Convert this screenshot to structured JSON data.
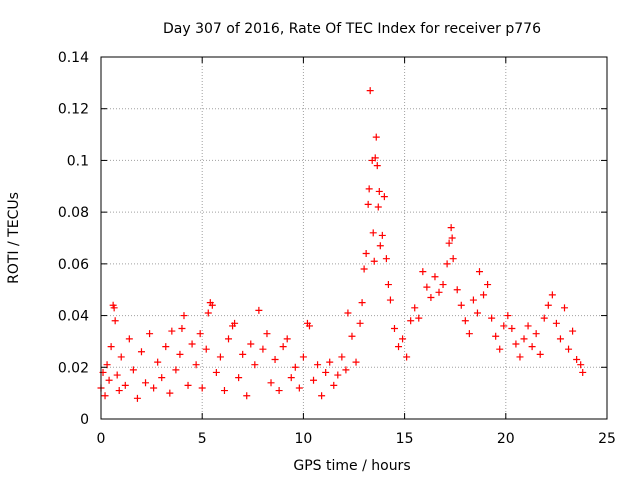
{
  "chart_data": {
    "type": "scatter",
    "title": "Day 307 of 2016, Rate Of TEC Index for receiver p776",
    "xlabel": "GPS time / hours",
    "ylabel": "ROTI / TECUs",
    "xlim": [
      0,
      25
    ],
    "ylim": [
      0,
      0.14
    ],
    "xticks": [
      0,
      5,
      10,
      15,
      20,
      25
    ],
    "yticks": [
      0,
      0.02,
      0.04,
      0.06,
      0.08,
      0.1,
      0.12,
      0.14
    ],
    "xtick_labels": [
      "0",
      "5",
      "10",
      "15",
      "20",
      "25"
    ],
    "ytick_labels": [
      "0",
      "0.02",
      "0.04",
      "0.06",
      "0.08",
      "0.1",
      "0.12",
      "0.14"
    ],
    "grid": true,
    "marker": "+",
    "color": "#ff0000",
    "series": [
      {
        "name": "ROTI",
        "points": [
          [
            0.0,
            0.012
          ],
          [
            0.1,
            0.018
          ],
          [
            0.2,
            0.009
          ],
          [
            0.3,
            0.021
          ],
          [
            0.4,
            0.015
          ],
          [
            0.5,
            0.028
          ],
          [
            0.6,
            0.044
          ],
          [
            0.65,
            0.043
          ],
          [
            0.7,
            0.038
          ],
          [
            0.8,
            0.017
          ],
          [
            0.9,
            0.011
          ],
          [
            1.0,
            0.024
          ],
          [
            1.2,
            0.013
          ],
          [
            1.4,
            0.031
          ],
          [
            1.6,
            0.019
          ],
          [
            1.8,
            0.008
          ],
          [
            2.0,
            0.026
          ],
          [
            2.2,
            0.014
          ],
          [
            2.4,
            0.033
          ],
          [
            2.6,
            0.012
          ],
          [
            2.8,
            0.022
          ],
          [
            3.0,
            0.016
          ],
          [
            3.2,
            0.028
          ],
          [
            3.4,
            0.01
          ],
          [
            3.5,
            0.034
          ],
          [
            3.7,
            0.019
          ],
          [
            3.9,
            0.025
          ],
          [
            4.0,
            0.035
          ],
          [
            4.1,
            0.04
          ],
          [
            4.3,
            0.013
          ],
          [
            4.5,
            0.029
          ],
          [
            4.7,
            0.021
          ],
          [
            4.9,
            0.033
          ],
          [
            5.0,
            0.012
          ],
          [
            5.2,
            0.027
          ],
          [
            5.3,
            0.041
          ],
          [
            5.4,
            0.045
          ],
          [
            5.5,
            0.044
          ],
          [
            5.7,
            0.018
          ],
          [
            5.9,
            0.024
          ],
          [
            6.1,
            0.011
          ],
          [
            6.3,
            0.031
          ],
          [
            6.5,
            0.036
          ],
          [
            6.6,
            0.037
          ],
          [
            6.8,
            0.016
          ],
          [
            7.0,
            0.025
          ],
          [
            7.2,
            0.009
          ],
          [
            7.4,
            0.029
          ],
          [
            7.6,
            0.021
          ],
          [
            7.8,
            0.042
          ],
          [
            8.0,
            0.027
          ],
          [
            8.2,
            0.033
          ],
          [
            8.4,
            0.014
          ],
          [
            8.6,
            0.023
          ],
          [
            8.8,
            0.011
          ],
          [
            9.0,
            0.028
          ],
          [
            9.2,
            0.031
          ],
          [
            9.4,
            0.016
          ],
          [
            9.6,
            0.02
          ],
          [
            9.8,
            0.012
          ],
          [
            10.0,
            0.024
          ],
          [
            10.2,
            0.037
          ],
          [
            10.3,
            0.036
          ],
          [
            10.5,
            0.015
          ],
          [
            10.7,
            0.021
          ],
          [
            10.9,
            0.009
          ],
          [
            11.1,
            0.018
          ],
          [
            11.3,
            0.022
          ],
          [
            11.5,
            0.013
          ],
          [
            11.7,
            0.017
          ],
          [
            11.9,
            0.024
          ],
          [
            12.1,
            0.019
          ],
          [
            12.2,
            0.041
          ],
          [
            12.4,
            0.032
          ],
          [
            12.6,
            0.022
          ],
          [
            12.8,
            0.037
          ],
          [
            12.9,
            0.045
          ],
          [
            13.0,
            0.058
          ],
          [
            13.1,
            0.064
          ],
          [
            13.2,
            0.083
          ],
          [
            13.25,
            0.089
          ],
          [
            13.3,
            0.127
          ],
          [
            13.4,
            0.1
          ],
          [
            13.45,
            0.072
          ],
          [
            13.5,
            0.061
          ],
          [
            13.55,
            0.101
          ],
          [
            13.6,
            0.109
          ],
          [
            13.65,
            0.098
          ],
          [
            13.7,
            0.082
          ],
          [
            13.75,
            0.088
          ],
          [
            13.8,
            0.067
          ],
          [
            13.9,
            0.071
          ],
          [
            14.0,
            0.086
          ],
          [
            14.1,
            0.062
          ],
          [
            14.2,
            0.052
          ],
          [
            14.3,
            0.046
          ],
          [
            14.5,
            0.035
          ],
          [
            14.7,
            0.028
          ],
          [
            14.9,
            0.031
          ],
          [
            15.1,
            0.024
          ],
          [
            15.3,
            0.038
          ],
          [
            15.5,
            0.043
          ],
          [
            15.7,
            0.039
          ],
          [
            15.9,
            0.057
          ],
          [
            16.1,
            0.051
          ],
          [
            16.3,
            0.047
          ],
          [
            16.5,
            0.055
          ],
          [
            16.7,
            0.049
          ],
          [
            16.9,
            0.052
          ],
          [
            17.1,
            0.06
          ],
          [
            17.2,
            0.068
          ],
          [
            17.3,
            0.074
          ],
          [
            17.35,
            0.07
          ],
          [
            17.4,
            0.062
          ],
          [
            17.6,
            0.05
          ],
          [
            17.8,
            0.044
          ],
          [
            18.0,
            0.038
          ],
          [
            18.2,
            0.033
          ],
          [
            18.4,
            0.046
          ],
          [
            18.6,
            0.041
          ],
          [
            18.7,
            0.057
          ],
          [
            18.9,
            0.048
          ],
          [
            19.1,
            0.052
          ],
          [
            19.3,
            0.039
          ],
          [
            19.5,
            0.032
          ],
          [
            19.7,
            0.027
          ],
          [
            19.9,
            0.036
          ],
          [
            20.1,
            0.04
          ],
          [
            20.3,
            0.035
          ],
          [
            20.5,
            0.029
          ],
          [
            20.7,
            0.024
          ],
          [
            20.9,
            0.031
          ],
          [
            21.1,
            0.036
          ],
          [
            21.3,
            0.028
          ],
          [
            21.5,
            0.033
          ],
          [
            21.7,
            0.025
          ],
          [
            21.9,
            0.039
          ],
          [
            22.1,
            0.044
          ],
          [
            22.3,
            0.048
          ],
          [
            22.5,
            0.037
          ],
          [
            22.7,
            0.031
          ],
          [
            22.9,
            0.043
          ],
          [
            23.1,
            0.027
          ],
          [
            23.3,
            0.034
          ],
          [
            23.5,
            0.023
          ],
          [
            23.7,
            0.021
          ],
          [
            23.8,
            0.018
          ]
        ]
      }
    ]
  }
}
